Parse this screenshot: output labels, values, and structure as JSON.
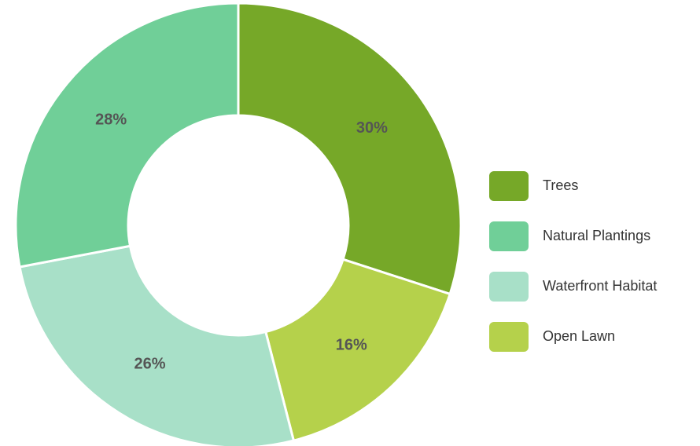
{
  "chart_data": {
    "type": "donut",
    "categories": [
      "Trees",
      "Open Lawn",
      "Waterfront Habitat",
      "Natural Plantings"
    ],
    "values": [
      30,
      16,
      26,
      28
    ],
    "value_labels": [
      "30%",
      "16%",
      "26%",
      "28%"
    ],
    "colors": [
      "#76a828",
      "#b5d14b",
      "#a8e0c8",
      "#70cf98"
    ],
    "legend": [
      "Trees",
      "Natural Plantings",
      "Waterfront Habitat",
      "Open Lawn"
    ],
    "legend_position": "right"
  }
}
